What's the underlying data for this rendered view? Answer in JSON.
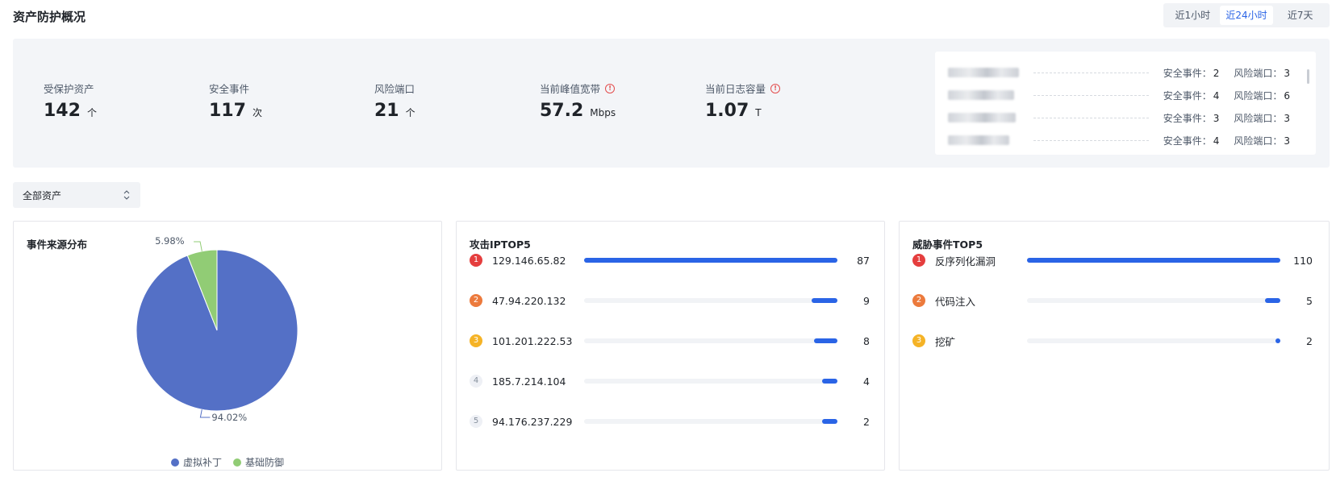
{
  "header": {
    "title": "资产防护概况",
    "time_ranges": [
      {
        "label": "近1小时",
        "active": false
      },
      {
        "label": "近24小时",
        "active": true
      },
      {
        "label": "近7天",
        "active": false
      }
    ]
  },
  "overview": {
    "metrics": [
      {
        "label": "受保护资产",
        "value": "142",
        "unit": "个",
        "warning": false
      },
      {
        "label": "安全事件",
        "value": "117",
        "unit": "次",
        "warning": false
      },
      {
        "label": "风险端口",
        "value": "21",
        "unit": "个",
        "warning": false
      },
      {
        "label": "当前峰值宽带",
        "value": "57.2",
        "unit": "Mbps",
        "warning": true
      },
      {
        "label": "当前日志容量",
        "value": "1.07",
        "unit": "T",
        "warning": true
      }
    ],
    "asset_list": {
      "rows": [
        {
          "events": "2",
          "ports": "3"
        },
        {
          "events": "4",
          "ports": "6"
        },
        {
          "events": "3",
          "ports": "3"
        },
        {
          "events": "4",
          "ports": "3"
        }
      ],
      "events_label": "安全事件：",
      "ports_label": "风险端口："
    }
  },
  "filter": {
    "asset_select": "全部资产"
  },
  "event_source": {
    "title": "事件来源分布",
    "legend": [
      "虚拟补丁",
      "基础防御"
    ],
    "colors": [
      "#5470c6",
      "#91cc75"
    ]
  },
  "attack_ip": {
    "title": "攻击IPTOP5",
    "items": [
      {
        "rank": "1",
        "label": "129.146.65.82",
        "value": 87
      },
      {
        "rank": "2",
        "label": "47.94.220.132",
        "value": 9
      },
      {
        "rank": "3",
        "label": "101.201.222.53",
        "value": 8
      },
      {
        "rank": "4",
        "label": "185.7.214.104",
        "value": 4
      },
      {
        "rank": "5",
        "label": "94.176.237.229",
        "value": 2
      }
    ]
  },
  "threat_event": {
    "title": "威胁事件TOP5",
    "items": [
      {
        "rank": "1",
        "label": "反序列化漏洞",
        "value": 110
      },
      {
        "rank": "2",
        "label": "代码注入",
        "value": 5
      },
      {
        "rank": "3",
        "label": "挖矿",
        "value": 2
      }
    ]
  },
  "chart_data": {
    "type": "pie",
    "title": "事件来源分布",
    "categories": [
      "虚拟补丁",
      "基础防御"
    ],
    "values": [
      94.02,
      5.98
    ],
    "labels": [
      "94.02%",
      "5.98%"
    ],
    "colors": [
      "#5470c6",
      "#91cc75"
    ],
    "legend": "bottom"
  },
  "colors": {
    "accent": "#2a64e6",
    "rank1": "#e53e3e",
    "rank2": "#ec7a3c",
    "rank3": "#f5b326",
    "warning": "#e34d4d"
  }
}
